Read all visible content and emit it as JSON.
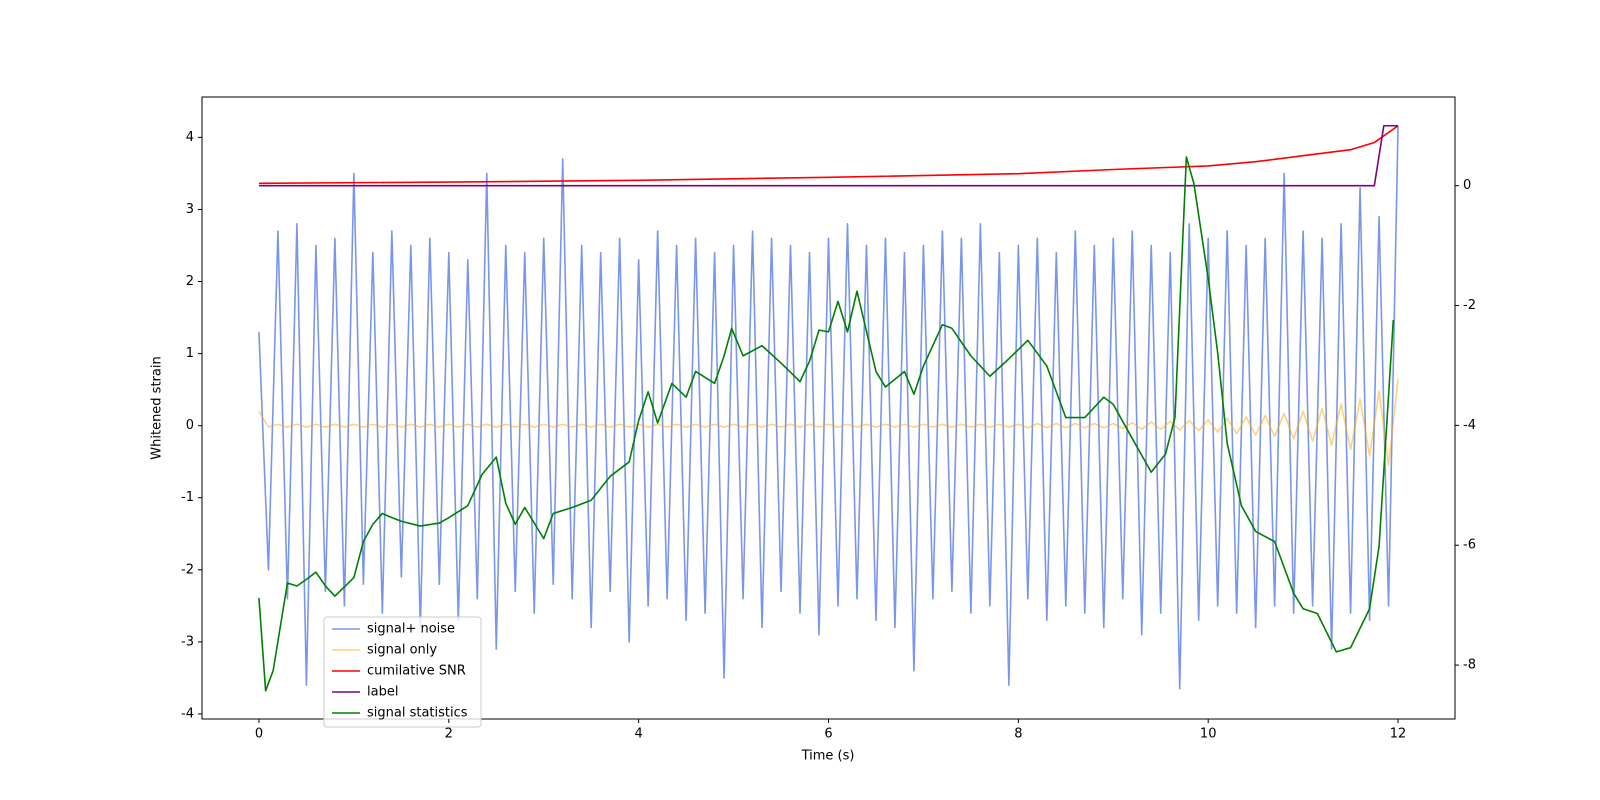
{
  "chart_data": {
    "type": "line",
    "xlabel": "Time (s)",
    "ylabel": "Whitened strain",
    "xlim": [
      -0.6,
      12.6
    ],
    "ylim": [
      -4.07,
      4.56
    ],
    "y2lim": [
      -8.9,
      1.48
    ],
    "xticks": [
      0,
      2,
      4,
      6,
      8,
      10,
      12
    ],
    "yticks": [
      -4,
      -3,
      -2,
      -1,
      0,
      1,
      2,
      3,
      4
    ],
    "y2ticks": [
      -8,
      -6,
      -4,
      -2,
      0
    ],
    "legend": "lower left",
    "x": [
      0,
      0.1,
      0.2,
      0.3,
      0.4,
      0.5,
      0.6,
      0.7,
      0.8,
      0.9,
      1,
      1.1,
      1.2,
      1.3,
      1.4,
      1.5,
      1.6,
      1.7,
      1.8,
      1.9,
      2,
      2.1,
      2.2,
      2.3,
      2.4,
      2.5,
      2.6,
      2.7,
      2.8,
      2.9,
      3,
      3.1,
      3.2,
      3.3,
      3.4,
      3.5,
      3.6,
      3.7,
      3.8,
      3.9,
      4,
      4.1,
      4.2,
      4.3,
      4.4,
      4.5,
      4.6,
      4.7,
      4.8,
      4.9,
      5,
      5.1,
      5.2,
      5.3,
      5.4,
      5.5,
      5.6,
      5.7,
      5.8,
      5.9,
      6,
      6.1,
      6.2,
      6.3,
      6.4,
      6.5,
      6.6,
      6.7,
      6.8,
      6.9,
      7,
      7.1,
      7.2,
      7.3,
      7.4,
      7.5,
      7.6,
      7.7,
      7.8,
      7.9,
      8,
      8.1,
      8.2,
      8.3,
      8.4,
      8.5,
      8.6,
      8.7,
      8.8,
      8.9,
      9,
      9.1,
      9.2,
      9.3,
      9.4,
      9.5,
      9.6,
      9.7,
      9.8,
      9.9,
      10,
      10.1,
      10.2,
      10.3,
      10.4,
      10.5,
      10.6,
      10.7,
      10.8,
      10.9,
      11,
      11.1,
      11.2,
      11.3,
      11.4,
      11.5,
      11.6,
      11.7,
      11.8,
      11.9,
      12
    ],
    "series": [
      {
        "name": "signal+ noise",
        "color": "royalblue",
        "opacity": 0.7,
        "values": [
          1.3,
          -2.0,
          2.7,
          -2.4,
          2.8,
          -3.6,
          2.5,
          -2.3,
          2.6,
          -2.5,
          3.5,
          -2.2,
          2.4,
          -2.6,
          2.7,
          -2.1,
          2.5,
          -2.8,
          2.6,
          -2.2,
          2.4,
          -2.7,
          2.3,
          -2.4,
          3.5,
          -3.1,
          2.5,
          -2.3,
          2.4,
          -2.6,
          2.6,
          -2.2,
          3.7,
          -2.4,
          2.5,
          -2.8,
          2.4,
          -2.3,
          2.6,
          -3.0,
          2.3,
          -2.5,
          2.7,
          -2.4,
          2.5,
          -2.7,
          2.6,
          -2.6,
          2.4,
          -3.5,
          2.5,
          -2.4,
          2.7,
          -2.8,
          2.6,
          -2.3,
          2.5,
          -2.6,
          2.4,
          -2.9,
          2.6,
          -2.5,
          2.8,
          -2.4,
          2.5,
          -2.7,
          2.6,
          -2.8,
          2.4,
          -3.4,
          2.5,
          -2.4,
          2.7,
          -2.3,
          2.6,
          -2.6,
          2.8,
          -2.5,
          2.4,
          -3.6,
          2.5,
          -2.4,
          2.6,
          -2.7,
          2.4,
          -2.5,
          2.7,
          -2.6,
          2.5,
          -2.8,
          2.6,
          -2.4,
          2.7,
          -2.9,
          2.5,
          -2.6,
          2.4,
          -3.65,
          2.8,
          -2.7,
          2.6,
          -2.5,
          2.7,
          -2.6,
          2.5,
          -2.8,
          2.6,
          -2.5,
          3.5,
          -2.6,
          2.7,
          -2.5,
          2.6,
          -3.1,
          2.8,
          -2.6,
          3.3,
          -2.7,
          2.9,
          -2.5,
          4.15
        ]
      },
      {
        "name": "signal only",
        "color": "orange",
        "opacity": 0.5,
        "values": [
          0.2,
          -0.02,
          0.02,
          -0.02,
          0.02,
          -0.02,
          0.02,
          -0.02,
          0.02,
          -0.02,
          0.02,
          -0.02,
          0.02,
          -0.02,
          0.02,
          -0.02,
          0.02,
          -0.02,
          0.02,
          -0.02,
          0.02,
          -0.02,
          0.02,
          -0.02,
          0.02,
          -0.02,
          0.02,
          -0.02,
          0.02,
          -0.02,
          0.02,
          -0.02,
          0.02,
          -0.02,
          0.02,
          -0.02,
          0.02,
          -0.02,
          0.02,
          -0.02,
          0.02,
          -0.02,
          0.02,
          -0.02,
          0.02,
          -0.02,
          0.02,
          -0.02,
          0.02,
          -0.02,
          0.02,
          -0.02,
          0.02,
          -0.02,
          0.02,
          -0.02,
          0.02,
          -0.02,
          0.02,
          -0.02,
          0.02,
          -0.02,
          0.02,
          -0.02,
          0.02,
          -0.02,
          0.02,
          -0.02,
          0.02,
          -0.02,
          0.02,
          -0.02,
          0.02,
          -0.02,
          0.02,
          -0.02,
          0.02,
          -0.02,
          0.02,
          -0.02,
          0.02,
          -0.03,
          0.03,
          -0.03,
          0.03,
          -0.03,
          0.03,
          -0.03,
          0.03,
          -0.03,
          0.03,
          -0.04,
          0.04,
          -0.05,
          0.05,
          -0.05,
          0.06,
          -0.06,
          0.07,
          -0.07,
          0.08,
          -0.09,
          0.1,
          -0.11,
          0.12,
          -0.13,
          0.14,
          -0.15,
          0.17,
          -0.18,
          0.2,
          -0.22,
          0.24,
          -0.27,
          0.3,
          -0.33,
          0.37,
          -0.42,
          0.48,
          -0.55,
          0.65
        ]
      },
      {
        "name": "cumilative SNR",
        "color": "red",
        "axis": "y2",
        "x": [
          0,
          2,
          4,
          6,
          8,
          9,
          10,
          10.5,
          11,
          11.5,
          11.75,
          12
        ],
        "values": [
          0.04,
          0.06,
          0.09,
          0.14,
          0.2,
          0.27,
          0.33,
          0.4,
          0.5,
          0.6,
          0.72,
          1.0
        ]
      },
      {
        "name": "label",
        "color": "purple",
        "axis": "y2",
        "x": [
          0,
          11.75,
          11.85,
          12
        ],
        "values": [
          0,
          0,
          1,
          1
        ]
      },
      {
        "name": "signal statistics",
        "color": "green",
        "axis": "y2",
        "x": [
          0,
          0.07,
          0.15,
          0.3,
          0.4,
          0.5,
          0.6,
          0.7,
          0.8,
          1.0,
          1.1,
          1.2,
          1.3,
          1.4,
          1.5,
          1.7,
          1.9,
          2.0,
          2.2,
          2.35,
          2.5,
          2.6,
          2.7,
          2.8,
          3.0,
          3.1,
          3.3,
          3.5,
          3.7,
          3.9,
          4.0,
          4.1,
          4.2,
          4.35,
          4.5,
          4.6,
          4.8,
          4.9,
          4.98,
          5.1,
          5.3,
          5.5,
          5.7,
          5.8,
          5.9,
          6.0,
          6.1,
          6.2,
          6.3,
          6.5,
          6.6,
          6.8,
          6.9,
          7.0,
          7.2,
          7.3,
          7.5,
          7.7,
          7.9,
          8.1,
          8.3,
          8.5,
          8.7,
          8.9,
          9.0,
          9.2,
          9.4,
          9.55,
          9.65,
          9.77,
          9.85,
          10.0,
          10.1,
          10.2,
          10.35,
          10.5,
          10.7,
          10.9,
          11.0,
          11.15,
          11.35,
          11.5,
          11.7,
          11.8,
          11.95
        ],
        "values": [
          -6.88,
          -8.43,
          -8.09,
          -6.63,
          -6.68,
          -6.57,
          -6.45,
          -6.68,
          -6.85,
          -6.54,
          -5.94,
          -5.65,
          -5.47,
          -5.54,
          -5.6,
          -5.68,
          -5.63,
          -5.54,
          -5.34,
          -4.82,
          -4.53,
          -5.3,
          -5.65,
          -5.37,
          -5.89,
          -5.47,
          -5.37,
          -5.25,
          -4.85,
          -4.61,
          -3.92,
          -3.44,
          -3.96,
          -3.3,
          -3.53,
          -3.1,
          -3.3,
          -2.84,
          -2.38,
          -2.84,
          -2.67,
          -2.96,
          -3.27,
          -2.93,
          -2.41,
          -2.44,
          -1.93,
          -2.44,
          -1.76,
          -3.1,
          -3.36,
          -3.1,
          -3.48,
          -3.01,
          -2.32,
          -2.38,
          -2.84,
          -3.18,
          -2.89,
          -2.58,
          -3.01,
          -3.87,
          -3.87,
          -3.53,
          -3.65,
          -4.22,
          -4.78,
          -4.48,
          -3.87,
          0.48,
          0.03,
          -1.55,
          -2.79,
          -4.3,
          -5.34,
          -5.77,
          -5.94,
          -6.8,
          -7.06,
          -7.14,
          -7.78,
          -7.71,
          -7.06,
          -6.02,
          -2.24
        ]
      }
    ]
  }
}
